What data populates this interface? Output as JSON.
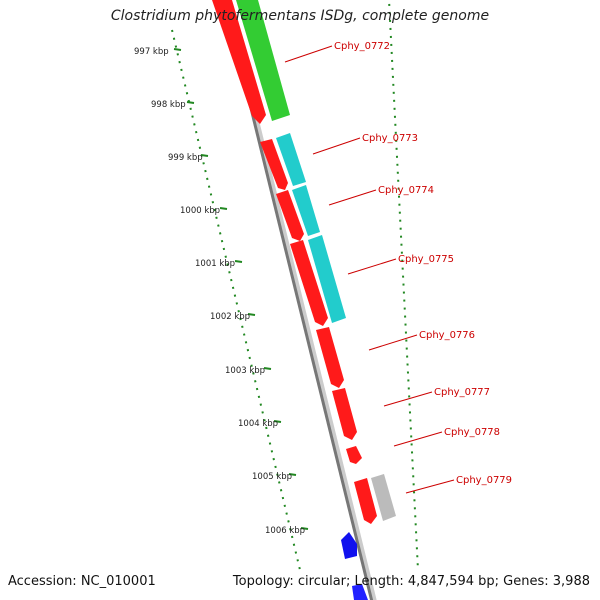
{
  "title": "Clostridium phytofermentans ISDg, complete genome",
  "accession_text": "Accession: NC_010001",
  "summary_text": "Topology: circular; Length: 4,847,594 bp; Genes: 3,988",
  "colors": {
    "forward_red": "#ff1a1a",
    "green": "#33cc33",
    "cyan": "#22cccc",
    "gray": "#bbbbbb",
    "blue": "#1111ee",
    "label_red": "#cc0000",
    "backbone": "#888888",
    "ticks": "#228822"
  },
  "scale_labels": [
    "997 kbp",
    "998 kbp",
    "999 kbp",
    "1000 kbp",
    "1001 kbp",
    "1002 kbp",
    "1003 kbp",
    "1004 kbp",
    "1005 kbp",
    "1006 kbp"
  ],
  "gene_labels": [
    "Cphy_0772",
    "Cphy_0773",
    "Cphy_0774",
    "Cphy_0775",
    "Cphy_0776",
    "Cphy_0777",
    "Cphy_0778",
    "Cphy_0779"
  ]
}
